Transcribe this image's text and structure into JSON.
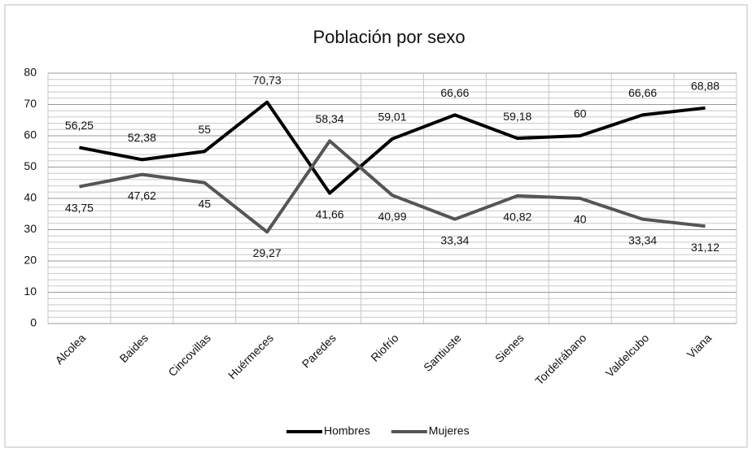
{
  "chart_data": {
    "type": "line",
    "title": "Población por sexo",
    "categories": [
      "Alcolea",
      "Baides",
      "Cincovillas",
      "Huérmeces",
      "Paredes",
      "Riofrío",
      "Santiuste",
      "Sienes",
      "Tordelrábano",
      "Valdelcubo",
      "Viana"
    ],
    "series": [
      {
        "name": "Hombres",
        "color": "#000000",
        "values": [
          56.25,
          52.38,
          55,
          70.73,
          41.66,
          59.01,
          66.66,
          59.18,
          60,
          66.66,
          68.88
        ],
        "value_labels": [
          "56,25",
          "52,38",
          "55",
          "70,73",
          "41,66",
          "59,01",
          "66,66",
          "59,18",
          "60",
          "66,66",
          "68,88"
        ]
      },
      {
        "name": "Mujeres",
        "color": "#555555",
        "values": [
          43.75,
          47.62,
          45,
          29.27,
          58.34,
          40.99,
          33.34,
          40.82,
          40,
          33.34,
          31.12
        ],
        "value_labels": [
          "43,75",
          "47,62",
          "45",
          "29,27",
          "58,34",
          "40,99",
          "33,34",
          "40,82",
          "40",
          "33,34",
          "31,12"
        ]
      }
    ],
    "ylim": [
      0,
      80
    ],
    "yticks": [
      0,
      10,
      20,
      30,
      40,
      50,
      60,
      70,
      80
    ],
    "grid": true,
    "legend": "bottom"
  }
}
